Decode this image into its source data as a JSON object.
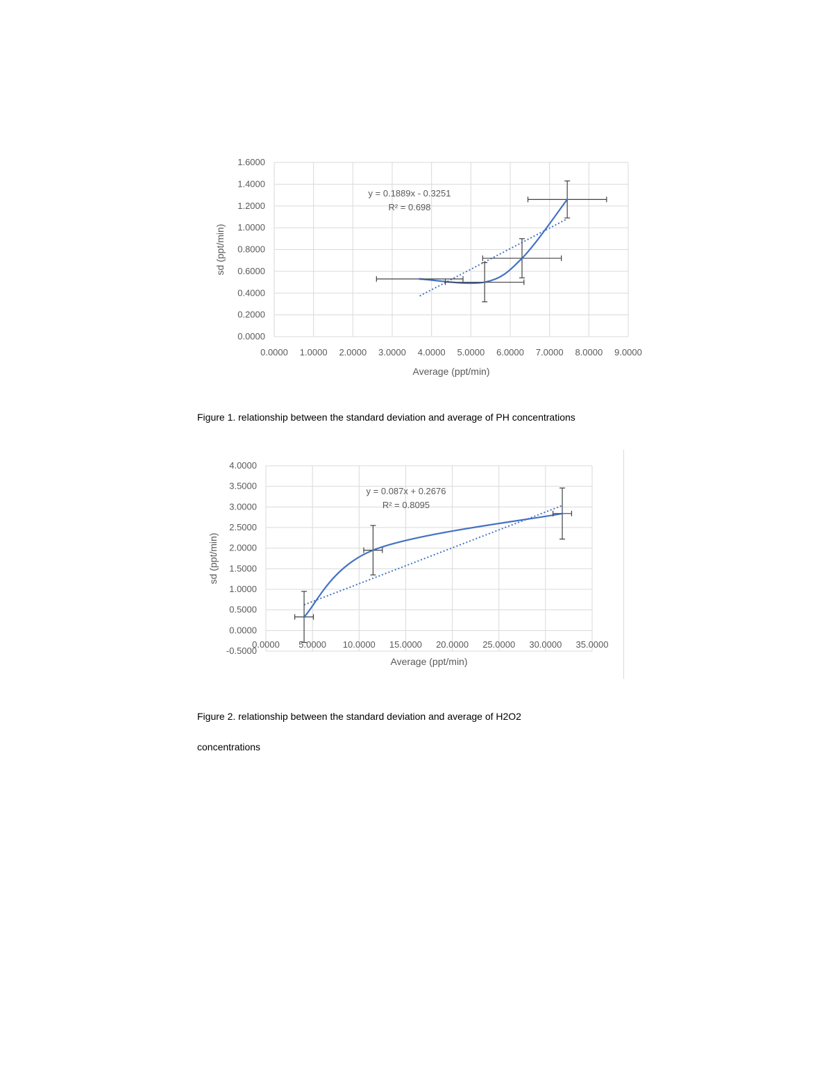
{
  "chart_data": [
    {
      "type": "scatter",
      "xlabel": "Average (ppt/min)",
      "ylabel": "sd (ppt/min)",
      "xlim": [
        0,
        9
      ],
      "ylim": [
        0,
        1.6
      ],
      "x_ticks": [
        "0.0000",
        "1.0000",
        "2.0000",
        "3.0000",
        "4.0000",
        "5.0000",
        "6.0000",
        "7.0000",
        "8.0000",
        "9.0000"
      ],
      "y_ticks": [
        "0.0000",
        "0.2000",
        "0.4000",
        "0.6000",
        "0.8000",
        "1.0000",
        "1.2000",
        "1.4000",
        "1.6000"
      ],
      "grid": true,
      "series": [
        {
          "x": [
            3.7,
            5.35,
            6.3,
            7.45
          ],
          "y": [
            0.53,
            0.5,
            0.72,
            1.26
          ],
          "x_error": [
            1.1,
            1.0,
            1.0,
            1.0
          ],
          "y_error": [
            0.0,
            0.18,
            0.18,
            0.17
          ]
        }
      ],
      "trendline": {
        "type": "linear",
        "slope": 0.1889,
        "intercept": -0.3251,
        "x_range": [
          3.7,
          7.45
        ],
        "equation": "y = 0.1889x - 0.3251",
        "r2": "R² = 0.698"
      },
      "color": "#4472c4",
      "caption": "Figure 1. relationship between the standard deviation and average of PH concentrations"
    },
    {
      "type": "scatter",
      "xlabel": "Average (ppt/min)",
      "ylabel": "sd (ppt/min)",
      "xlim": [
        0,
        35
      ],
      "ylim": [
        -0.5,
        4
      ],
      "x_ticks": [
        "0.0000",
        "5.0000",
        "10.0000",
        "15.0000",
        "20.0000",
        "25.0000",
        "30.0000",
        "35.0000"
      ],
      "y_ticks": [
        "-0.5000",
        "0.0000",
        "0.5000",
        "1.0000",
        "1.5000",
        "2.0000",
        "2.5000",
        "3.0000",
        "3.5000",
        "4.0000"
      ],
      "grid": true,
      "series": [
        {
          "x": [
            4.1,
            11.5,
            31.8
          ],
          "y": [
            0.33,
            1.95,
            2.84
          ],
          "x_error": [
            1.0,
            1.0,
            1.0
          ],
          "y_error": [
            0.62,
            0.6,
            0.62
          ]
        }
      ],
      "trendline": {
        "type": "linear",
        "slope": 0.087,
        "intercept": 0.2676,
        "x_range": [
          4.1,
          31.8
        ],
        "equation": "y = 0.087x + 0.2676",
        "r2": "R² = 0.8095"
      },
      "color": "#4472c4",
      "caption_line1": "Figure 2. relationship between the standard deviation and average of H2O2",
      "caption_line2": "concentrations"
    }
  ]
}
